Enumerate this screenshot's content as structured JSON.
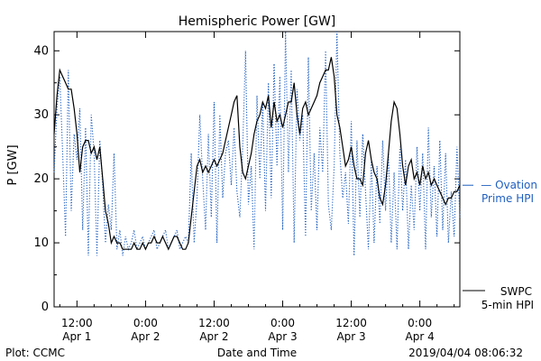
{
  "chart_data": {
    "type": "line",
    "title": "Hemispheric Power [GW]",
    "xlabel": "Date and Time",
    "ylabel": "P [GW]",
    "ylim": [
      0,
      43
    ],
    "yticks": [
      0,
      10,
      20,
      30,
      40
    ],
    "grid": false,
    "x_unit": "hours from 2019-04-01 12:00 UT",
    "xlim": [
      -4,
      67
    ],
    "xticks": [
      {
        "x": 0,
        "line1": "12:00",
        "line2": "Apr 1"
      },
      {
        "x": 12,
        "line1": "0:00",
        "line2": "Apr 2"
      },
      {
        "x": 24,
        "line1": "12:00",
        "line2": "Apr 2"
      },
      {
        "x": 36,
        "line1": "0:00",
        "line2": "Apr 3"
      },
      {
        "x": 48,
        "line1": "12:00",
        "line2": "Apr 3"
      },
      {
        "x": 60,
        "line1": "0:00",
        "line2": "Apr 4"
      }
    ],
    "series": [
      {
        "name": "Ovation Prime HPI",
        "legend_lines": [
          "Ovation",
          "Prime HPI"
        ],
        "color": "#1f5fbf",
        "style": "dotted",
        "x": [
          -4,
          -3.5,
          -3,
          -2.5,
          -2,
          -1.5,
          -1,
          -0.5,
          0,
          0.5,
          1,
          1.5,
          2,
          2.5,
          3,
          3.5,
          4,
          4.5,
          5,
          5.5,
          6,
          6.5,
          7,
          7.5,
          8,
          8.5,
          9,
          9.5,
          10,
          10.5,
          11,
          11.5,
          12,
          12.5,
          13,
          13.5,
          14,
          14.5,
          15,
          15.5,
          16,
          16.5,
          17,
          17.5,
          18,
          18.5,
          19,
          19.5,
          20,
          20.5,
          21,
          21.5,
          22,
          22.5,
          23,
          23.5,
          24,
          24.5,
          25,
          25.5,
          26,
          26.5,
          27,
          27.5,
          28,
          28.5,
          29,
          29.5,
          30,
          30.5,
          31,
          31.5,
          32,
          32.5,
          33,
          33.5,
          34,
          34.5,
          35,
          35.5,
          36,
          36.5,
          37,
          37.5,
          38,
          38.5,
          39,
          39.5,
          40,
          40.5,
          41,
          41.5,
          42,
          42.5,
          43,
          43.5,
          44,
          44.5,
          45,
          45.5,
          46,
          46.5,
          47,
          47.5,
          48,
          48.5,
          49,
          49.5,
          50,
          50.5,
          51,
          51.5,
          52,
          52.5,
          53,
          53.5,
          54,
          54.5,
          55,
          55.5,
          56,
          56.5,
          57,
          57.5,
          58,
          58.5,
          59,
          59.5,
          60,
          60.5,
          61,
          61.5,
          62,
          62.5,
          63,
          63.5,
          64,
          64.5,
          65,
          65.5,
          66,
          66.5,
          67
        ],
        "y": [
          21,
          31,
          36,
          24,
          11,
          37,
          15,
          27,
          23,
          31,
          12,
          28,
          8,
          30,
          24,
          8,
          26,
          19,
          10,
          16,
          12,
          24,
          9,
          12,
          8,
          11,
          9,
          10,
          12,
          9,
          10,
          11,
          9,
          10,
          11,
          12,
          9,
          10,
          11,
          12,
          9,
          10,
          11,
          12,
          9,
          10,
          11,
          10,
          24,
          10,
          17,
          30,
          20,
          12,
          27,
          14,
          32,
          10,
          30,
          17,
          24,
          26,
          19,
          28,
          18,
          14,
          25,
          40,
          16,
          22,
          9,
          33,
          20,
          32,
          15,
          35,
          17,
          38,
          22,
          36,
          12,
          43,
          21,
          37,
          10,
          34,
          26,
          30,
          11,
          39,
          15,
          24,
          12,
          28,
          21,
          40,
          16,
          12,
          22,
          43,
          24,
          17,
          21,
          13,
          29,
          8,
          26,
          14,
          27,
          18,
          9,
          23,
          10,
          22,
          13,
          26,
          15,
          24,
          10,
          21,
          9,
          25,
          15,
          23,
          9,
          19,
          12,
          25,
          15,
          24,
          9,
          28,
          14,
          22,
          11,
          26,
          12,
          24,
          10,
          18,
          11,
          25,
          14
        ]
      },
      {
        "name": "SWPC 5-min HPI",
        "legend_lines": [
          "SWPC",
          "5-min HPI"
        ],
        "color": "#000000",
        "style": "solid",
        "x": [
          -4,
          -3.5,
          -3,
          -2.5,
          -2,
          -1.5,
          -1,
          -0.5,
          0,
          0.5,
          1,
          1.5,
          2,
          2.5,
          3,
          3.5,
          4,
          4.5,
          5,
          5.5,
          6,
          6.5,
          7,
          7.5,
          8,
          8.5,
          9,
          9.5,
          10,
          10.5,
          11,
          11.5,
          12,
          12.5,
          13,
          13.5,
          14,
          14.5,
          15,
          15.5,
          16,
          16.5,
          17,
          17.5,
          18,
          18.5,
          19,
          19.5,
          20,
          20.5,
          21,
          21.5,
          22,
          22.5,
          23,
          23.5,
          24,
          24.5,
          25,
          25.5,
          26,
          26.5,
          27,
          27.5,
          28,
          28.5,
          29,
          29.5,
          30,
          30.5,
          31,
          31.5,
          32,
          32.5,
          33,
          33.5,
          34,
          34.5,
          35,
          35.5,
          36,
          36.5,
          37,
          37.5,
          38,
          38.5,
          39,
          39.5,
          40,
          40.5,
          41,
          41.5,
          42,
          42.5,
          43,
          43.5,
          44,
          44.5,
          45,
          45.5,
          46,
          46.5,
          47,
          47.5,
          48,
          48.5,
          49,
          49.5,
          50,
          50.5,
          51,
          51.5,
          52,
          52.5,
          53,
          53.5,
          54,
          54.5,
          55,
          55.5,
          56,
          56.5,
          57,
          57.5,
          58,
          58.5,
          59,
          59.5,
          60,
          60.5,
          61,
          61.5,
          62,
          62.5,
          63,
          63.5,
          64,
          64.5,
          65,
          65.5,
          66,
          66.5,
          67
        ],
        "y": [
          27,
          33,
          37,
          36,
          35,
          34,
          34,
          31,
          27,
          21,
          25,
          26,
          26,
          24,
          25,
          23,
          25,
          20,
          15,
          13,
          10,
          11,
          10,
          10,
          9,
          9,
          9,
          9,
          10,
          9,
          9,
          10,
          9,
          10,
          10,
          11,
          10,
          10,
          11,
          10,
          9,
          10,
          11,
          11,
          10,
          9,
          9,
          10,
          14,
          18,
          22,
          23,
          21,
          22,
          21,
          22,
          23,
          22,
          23,
          24,
          26,
          28,
          30,
          32,
          33,
          25,
          21,
          20,
          22,
          24,
          27,
          29,
          30,
          32,
          31,
          33,
          28,
          32,
          29,
          30,
          28,
          30,
          32,
          32,
          35,
          30,
          27,
          31,
          32,
          30,
          31,
          32,
          33,
          35,
          36,
          37,
          37,
          39,
          36,
          30,
          28,
          25,
          22,
          23,
          25,
          22,
          20,
          20,
          19,
          24,
          26,
          23,
          21,
          20,
          17,
          16,
          19,
          24,
          29,
          32,
          31,
          27,
          22,
          19,
          22,
          23,
          20,
          21,
          19,
          22,
          20,
          21,
          19,
          20,
          19,
          18,
          17,
          16,
          17,
          17,
          18,
          18,
          19
        ]
      }
    ]
  },
  "footer": {
    "source": "Plot: CCMC",
    "timestamp": "2019/04/04 08:06:32"
  }
}
